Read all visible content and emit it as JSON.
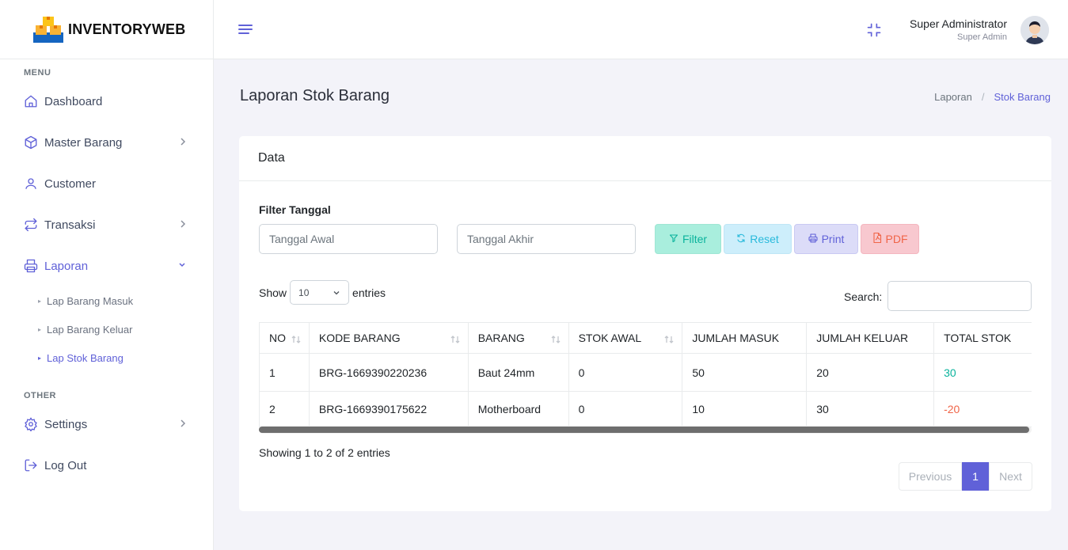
{
  "brand": {
    "name": "INVENTORYWEB"
  },
  "sidebar": {
    "menu_title": "MENU",
    "other_title": "OTHER",
    "items": [
      {
        "label": "Dashboard",
        "icon": "home-icon"
      },
      {
        "label": "Master Barang",
        "icon": "box-icon"
      },
      {
        "label": "Customer",
        "icon": "user-icon"
      },
      {
        "label": "Transaksi",
        "icon": "repeat-icon"
      },
      {
        "label": "Laporan",
        "icon": "printer-icon"
      }
    ],
    "sub_items": [
      {
        "label": "Lap Barang Masuk"
      },
      {
        "label": "Lap Barang Keluar"
      },
      {
        "label": "Lap Stok Barang"
      }
    ],
    "other_items": [
      {
        "label": "Settings",
        "icon": "gear-icon"
      },
      {
        "label": "Log Out",
        "icon": "logout-icon"
      }
    ]
  },
  "topbar": {
    "user_name": "Super Administrator",
    "user_role": "Super Admin"
  },
  "page": {
    "title": "Laporan Stok Barang",
    "breadcrumb": {
      "parent": "Laporan",
      "separator": "/",
      "current": "Stok Barang"
    }
  },
  "card": {
    "title": "Data",
    "filter_label": "Filter Tanggal",
    "start_date_placeholder": "Tanggal Awal",
    "end_date_placeholder": "Tanggal Akhir",
    "buttons": {
      "filter": "Filter",
      "reset": "Reset",
      "print": "Print",
      "pdf": "PDF"
    },
    "show_label": "Show",
    "entries_label": "entries",
    "page_size": "10",
    "search_label": "Search:",
    "search_value": ""
  },
  "table": {
    "headers": [
      "NO",
      "KODE BARANG",
      "BARANG",
      "STOK AWAL",
      "JUMLAH MASUK",
      "JUMLAH KELUAR",
      "TOTAL STOK"
    ],
    "rows": [
      {
        "no": "1",
        "kode": "BRG-1669390220236",
        "barang": "Baut 24mm",
        "stok_awal": "0",
        "masuk": "50",
        "keluar": "20",
        "total": "30"
      },
      {
        "no": "2",
        "kode": "BRG-1669390175622",
        "barang": "Motherboard",
        "stok_awal": "0",
        "masuk": "10",
        "keluar": "30",
        "total": "-20"
      }
    ]
  },
  "footer": {
    "showing": "Showing 1 to 2 of 2 entries",
    "previous": "Previous",
    "current_page": "1",
    "next": "Next"
  },
  "colors": {
    "accent": "#6061d8",
    "positive": "#0ab39c",
    "negative": "#f06548"
  }
}
